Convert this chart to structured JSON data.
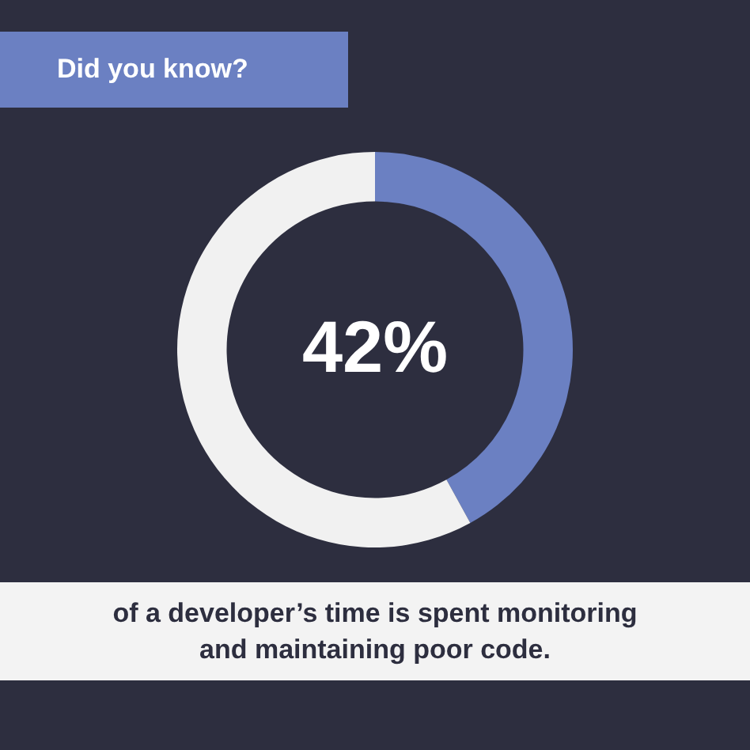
{
  "chart_data": {
    "type": "donut",
    "title": "Did you know?",
    "categories": [
      null,
      null
    ],
    "values": [
      42,
      58
    ],
    "colors": [
      "#6b80c2",
      "#f1f1f1"
    ],
    "value_labels": [
      "42%",
      null
    ],
    "annotations": [
      "of a developer’s time is spent monitoring and maintaining poor code."
    ]
  }
}
